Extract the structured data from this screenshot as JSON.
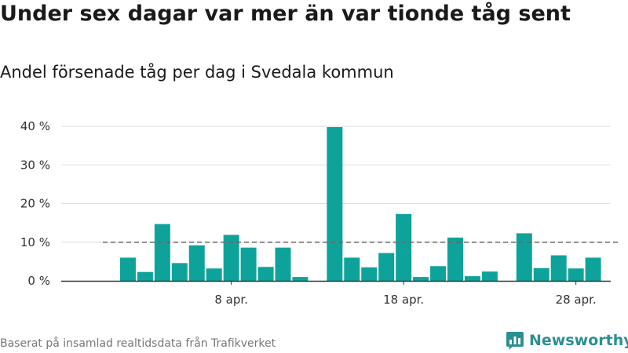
{
  "title": "Under sex dagar var mer än var tionde tåg sent",
  "subtitle": "Andel försenade tåg per dag i Svedala kommun",
  "source": "Baserat på insamlad realtidsdata från Trafikverket",
  "brand": {
    "name": "Newsworthy",
    "icon": "newsworthy-logo-icon"
  },
  "colors": {
    "bar": "#0ea39a",
    "reference_line": "#666666",
    "grid": "#dddddd",
    "axis": "#333333",
    "brand": "#2c8f92"
  },
  "chart_data": {
    "type": "bar",
    "title": "",
    "xlabel": "",
    "ylabel": "",
    "ylim": [
      0,
      40
    ],
    "y_ticks": [
      0,
      10,
      20,
      30,
      40
    ],
    "y_tick_labels": [
      "0 %",
      "10 %",
      "20 %",
      "30 %",
      "40 %"
    ],
    "x_tick_labels": [
      {
        "date": "2023-04-08",
        "label": "8 apr."
      },
      {
        "date": "2023-04-18",
        "label": "18 apr."
      },
      {
        "date": "2023-04-28",
        "label": "28 apr."
      }
    ],
    "dates": [
      "2023-04-01",
      "2023-04-02",
      "2023-04-03",
      "2023-04-04",
      "2023-04-05",
      "2023-04-06",
      "2023-04-07",
      "2023-04-08",
      "2023-04-09",
      "2023-04-10",
      "2023-04-11",
      "2023-04-12",
      "2023-04-13",
      "2023-04-14",
      "2023-04-15",
      "2023-04-16",
      "2023-04-17",
      "2023-04-18",
      "2023-04-19",
      "2023-04-20",
      "2023-04-21",
      "2023-04-22",
      "2023-04-23",
      "2023-04-24",
      "2023-04-25",
      "2023-04-26",
      "2023-04-27",
      "2023-04-28",
      "2023-04-29",
      "2023-04-30"
    ],
    "values": [
      null,
      6.0,
      2.3,
      14.7,
      4.6,
      9.2,
      3.2,
      11.9,
      8.6,
      3.6,
      8.6,
      1.0,
      null,
      39.8,
      6.0,
      3.5,
      7.2,
      17.3,
      1.0,
      3.8,
      11.2,
      1.2,
      2.4,
      null,
      12.3,
      3.3,
      6.6,
      3.2,
      6.0,
      null
    ],
    "reference_line": {
      "value": 10,
      "style": "dashed"
    },
    "grid": true
  }
}
